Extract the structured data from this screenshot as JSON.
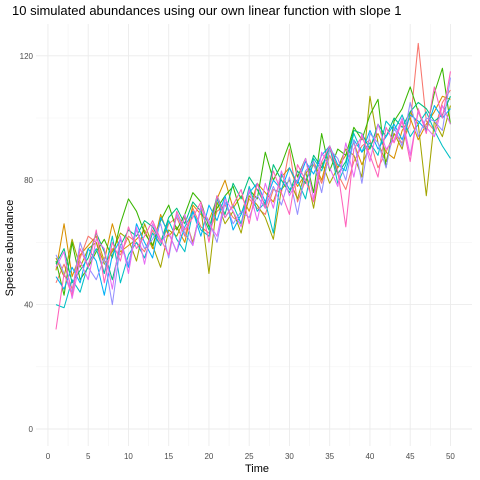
{
  "chart_data": {
    "type": "line",
    "title": "10 simulated abundances using our own linear function with slope 1",
    "xlabel": "Time",
    "ylabel": "Species abundance",
    "xlim": [
      1,
      50
    ],
    "ylim": [
      0,
      127
    ],
    "x_ticks": [
      0,
      5,
      10,
      15,
      20,
      25,
      30,
      35,
      40,
      45,
      50
    ],
    "y_ticks": [
      0,
      40,
      80,
      120
    ],
    "grid": true,
    "legend": "none",
    "x": [
      1,
      2,
      3,
      4,
      5,
      6,
      7,
      8,
      9,
      10,
      11,
      12,
      13,
      14,
      15,
      16,
      17,
      18,
      19,
      20,
      21,
      22,
      23,
      24,
      25,
      26,
      27,
      28,
      29,
      30,
      31,
      32,
      33,
      34,
      35,
      36,
      37,
      38,
      39,
      40,
      41,
      42,
      43,
      44,
      45,
      46,
      47,
      48,
      49,
      50
    ],
    "series": [
      {
        "color": "#F8766D",
        "values": [
          47,
          53,
          45,
          55,
          62,
          60,
          50,
          58,
          56,
          62,
          60,
          57,
          64,
          59,
          66,
          68,
          62,
          71,
          65,
          63,
          70,
          72,
          68,
          66,
          74,
          71,
          69,
          77,
          76,
          90,
          73,
          80,
          85,
          79,
          88,
          82,
          77,
          86,
          91,
          93,
          84,
          89,
          95,
          92,
          98,
          124,
          99,
          96,
          105,
          109
        ]
      },
      {
        "color": "#D89000",
        "values": [
          51,
          66,
          49,
          56,
          59,
          62,
          54,
          66,
          57,
          59,
          61,
          64,
          58,
          69,
          62,
          65,
          60,
          72,
          69,
          67,
          74,
          80,
          71,
          75,
          70,
          79,
          76,
          73,
          81,
          84,
          78,
          82,
          86,
          80,
          90,
          84,
          88,
          92,
          85,
          91,
          95,
          89,
          87,
          96,
          100,
          93,
          98,
          102,
          107,
          106
        ]
      },
      {
        "color": "#A3A500",
        "values": [
          55,
          49,
          61,
          52,
          58,
          60,
          53,
          57,
          63,
          61,
          54,
          66,
          59,
          52,
          64,
          62,
          68,
          60,
          71,
          50,
          73,
          66,
          70,
          63,
          75,
          72,
          68,
          61,
          77,
          80,
          74,
          83,
          71,
          86,
          79,
          84,
          90,
          88,
          81,
          107,
          92,
          86,
          95,
          90,
          102,
          98,
          75,
          99,
          94,
          104
        ]
      },
      {
        "color": "#39B600",
        "values": [
          54,
          43,
          60,
          48,
          52,
          57,
          61,
          55,
          66,
          74,
          70,
          63,
          59,
          67,
          72,
          64,
          69,
          76,
          73,
          65,
          71,
          75,
          78,
          69,
          77,
          74,
          89,
          80,
          85,
          92,
          81,
          87,
          76,
          95,
          83,
          90,
          88,
          97,
          93,
          101,
          106,
          84,
          99,
          103,
          110,
          102,
          96,
          108,
          116,
          98
        ]
      },
      {
        "color": "#00BF7D",
        "values": [
          53,
          58,
          47,
          51,
          55,
          63,
          57,
          48,
          59,
          64,
          62,
          67,
          65,
          60,
          68,
          71,
          66,
          73,
          70,
          64,
          75,
          69,
          79,
          74,
          81,
          77,
          72,
          85,
          80,
          76,
          83,
          79,
          88,
          84,
          91,
          82,
          86,
          96,
          95,
          90,
          98,
          94,
          100,
          97,
          102,
          105,
          103,
          99,
          101,
          107
        ]
      },
      {
        "color": "#00BFC4",
        "values": [
          40,
          39,
          48,
          44,
          53,
          58,
          50,
          62,
          47,
          56,
          60,
          55,
          63,
          59,
          67,
          61,
          57,
          70,
          64,
          62,
          74,
          68,
          72,
          66,
          78,
          70,
          73,
          63,
          82,
          77,
          80,
          74,
          87,
          83,
          91,
          79,
          85,
          95,
          89,
          92,
          88,
          99,
          96,
          101,
          94,
          98,
          102,
          96,
          91,
          87
        ]
      },
      {
        "color": "#00B0F6",
        "values": [
          49,
          45,
          52,
          47,
          58,
          54,
          43,
          56,
          61,
          52,
          66,
          60,
          55,
          68,
          63,
          57,
          65,
          70,
          62,
          72,
          67,
          75,
          64,
          69,
          76,
          79,
          73,
          80,
          77,
          84,
          79,
          86,
          82,
          88,
          91,
          85,
          83,
          93,
          89,
          96,
          90,
          94,
          98,
          93,
          101,
          99,
          96,
          104,
          100,
          103
        ]
      },
      {
        "color": "#9590FF",
        "values": [
          56,
          50,
          44,
          60,
          52,
          48,
          55,
          40,
          59,
          53,
          64,
          58,
          61,
          66,
          55,
          69,
          63,
          59,
          71,
          67,
          60,
          73,
          66,
          70,
          68,
          75,
          71,
          78,
          72,
          81,
          69,
          83,
          86,
          76,
          90,
          87,
          80,
          93,
          79,
          95,
          92,
          84,
          97,
          91,
          105,
          94,
          100,
          99,
          96,
          113
        ]
      },
      {
        "color": "#E76BF3",
        "values": [
          52,
          57,
          42,
          54,
          48,
          61,
          58,
          45,
          62,
          50,
          65,
          53,
          66,
          60,
          63,
          57,
          69,
          59,
          72,
          66,
          62,
          74,
          70,
          65,
          77,
          67,
          79,
          71,
          83,
          75,
          80,
          87,
          74,
          89,
          84,
          78,
          92,
          81,
          95,
          86,
          98,
          90,
          93,
          100,
          88,
          102,
          97,
          94,
          104,
          98
        ]
      },
      {
        "color": "#FF62BC",
        "values": [
          32,
          50,
          43,
          58,
          52,
          64,
          47,
          60,
          54,
          65,
          58,
          62,
          67,
          61,
          56,
          70,
          64,
          68,
          73,
          60,
          75,
          68,
          72,
          77,
          66,
          79,
          71,
          83,
          76,
          69,
          85,
          80,
          73,
          86,
          91,
          83,
          65,
          90,
          94,
          88,
          81,
          97,
          92,
          99,
          86,
          103,
          95,
          110,
          100,
          115
        ]
      }
    ]
  }
}
